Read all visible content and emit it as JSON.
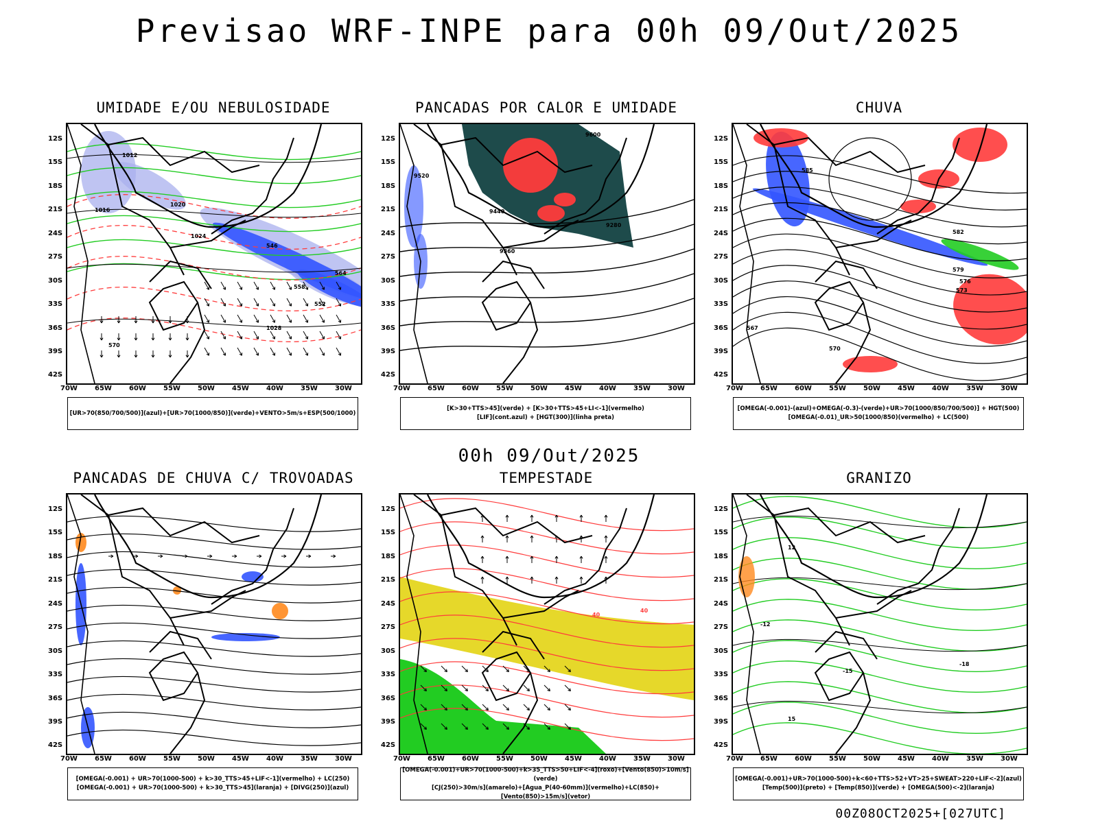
{
  "title": "Previsao WRF-INPE  para 00h 09/Out/2025",
  "subtitle": "00h 09/Out/2025",
  "footer_stamp": "00Z08OCT2025+[027UTC]",
  "lat_labels": [
    "12S",
    "15S",
    "18S",
    "21S",
    "24S",
    "27S",
    "30S",
    "33S",
    "36S",
    "39S",
    "42S"
  ],
  "lon_labels": [
    "70W",
    "65W",
    "60W",
    "55W",
    "50W",
    "45W",
    "40W",
    "35W",
    "30W"
  ],
  "colors": {
    "red": "#ff3b3b",
    "green": "#22cc22",
    "blue": "#3355ff",
    "lightblue": "#aab0ee",
    "teal": "#1e4b4b",
    "yellow": "#e6d82a",
    "orange": "#ff8a1e"
  },
  "panels": [
    {
      "id": "umidade",
      "title": "UMIDADE E/OU NEBULOSIDADE",
      "legend": [
        "[UR>70(850/700/500)](azul)+[UR>70(1000/850)](verde)+VENTO>5m/s+ESP(500/1000)"
      ],
      "contour_labels": [
        "1012",
        "1016",
        "1020",
        "1024",
        "1028",
        "570",
        "564",
        "558",
        "552",
        "546"
      ]
    },
    {
      "id": "pancadas-calor",
      "title": "PANCADAS POR CALOR E UMIDADE",
      "legend": [
        "[K>30+TTS>45](verde) + [K>30+TTS>45+LI<-1](vermelho)",
        "[LIF](cont.azul) + [HGT(300)](linha preta)"
      ],
      "contour_labels": [
        "9600",
        "9520",
        "9440",
        "9360",
        "9280"
      ]
    },
    {
      "id": "chuva",
      "title": "CHUVA",
      "legend": [
        "[OMEGA(-0.001)-(azul)+OMEGA(-0.3)-(verde)+UR>70(1000/850/700/500)] + HGT(500)",
        "[OMEGA(-0.01)_UR>50(1000/850)(vermelho) + LC(500)"
      ],
      "contour_labels": [
        "585",
        "582",
        "579",
        "576",
        "573",
        "570",
        "567"
      ]
    },
    {
      "id": "trovoadas",
      "title": "PANCADAS DE CHUVA C/ TROVOADAS",
      "legend": [
        "[OMEGA(-0.001) + UR>70(1000-500) + k>30_TTS>45+LIF<-1](vermelho) + LC(250)",
        "[OMEGA(-0.001) + UR>70(1000-500) + k>30_TTS>45](laranja) + [DIVG(250)](azul)"
      ],
      "contour_labels": []
    },
    {
      "id": "tempestade",
      "title": "TEMPESTADE",
      "legend": [
        "[OMEGA(-0.001)+UR>70(1000-500)+k>35_TTS>50+LIF<-4](roxo)+[Vento(850)>10m/s](verde)",
        "[CJ(250)>30m/s](amarelo)+[Agua_P(40-60mm)](vermelho)+LC(850)+[Vento(850)>15m/s](vetor)"
      ],
      "contour_labels": [
        "40",
        "40"
      ]
    },
    {
      "id": "granizo",
      "title": "GRANIZO",
      "legend": [
        "[OMEGA(-0.001)+UR>70(1000-500)+k<60+TTS>52+VT>25+SWEAT>220+LIF<-2](azul)",
        "[Temp(500)](preto) + [Temp(850)](verde) + [OMEGA(500)<-2](laranja)"
      ],
      "contour_labels": [
        "-12",
        "-15",
        "-18",
        "12",
        "15"
      ]
    }
  ]
}
